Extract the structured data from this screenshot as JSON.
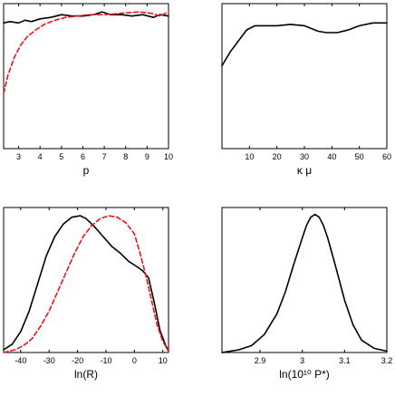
{
  "chart_data": [
    {
      "type": "line",
      "xlabel": "p",
      "xlim": [
        2.3,
        10
      ],
      "ylim": [
        0,
        1.05
      ],
      "xticks": [
        "3",
        "4",
        "5",
        "6",
        "7",
        "8",
        "9",
        "10"
      ],
      "series": [
        {
          "style": "solid",
          "color": "#000000",
          "x": [
            2.3,
            2.6,
            3.0,
            3.3,
            3.6,
            4.0,
            4.5,
            5.0,
            5.5,
            6.0,
            6.5,
            6.9,
            7.3,
            7.8,
            8.3,
            8.8,
            9.3,
            9.6,
            10.0
          ],
          "y": [
            0.91,
            0.92,
            0.91,
            0.93,
            0.92,
            0.94,
            0.95,
            0.97,
            0.96,
            0.96,
            0.97,
            0.99,
            0.97,
            0.97,
            0.96,
            0.97,
            0.95,
            0.97,
            0.96
          ]
        },
        {
          "style": "dashed",
          "color": "#e8141c",
          "x": [
            2.3,
            2.5,
            2.8,
            3.1,
            3.4,
            3.8,
            4.2,
            4.7,
            5.2,
            5.7,
            6.3,
            7.0,
            7.8,
            8.6,
            9.2,
            9.6,
            10.0
          ],
          "y": [
            0.4,
            0.53,
            0.66,
            0.75,
            0.81,
            0.86,
            0.9,
            0.93,
            0.95,
            0.96,
            0.97,
            0.97,
            0.98,
            0.99,
            0.98,
            0.96,
            0.99
          ]
        }
      ]
    },
    {
      "type": "line",
      "xlabel": "κ μ",
      "xlim": [
        0,
        60
      ],
      "ylim": [
        0,
        1.05
      ],
      "xticks": [
        "10",
        "20",
        "30",
        "40",
        "50",
        "60"
      ],
      "series": [
        {
          "style": "solid",
          "color": "#000000",
          "x": [
            0,
            3,
            6,
            9,
            12,
            15,
            20,
            25,
            30,
            35,
            38,
            42,
            46,
            50,
            55,
            60
          ],
          "y": [
            0.6,
            0.7,
            0.78,
            0.86,
            0.89,
            0.89,
            0.89,
            0.9,
            0.89,
            0.85,
            0.84,
            0.84,
            0.86,
            0.89,
            0.91,
            0.91
          ]
        }
      ]
    },
    {
      "type": "line",
      "xlabel": "ln(R)",
      "xlim": [
        -46,
        12
      ],
      "ylim": [
        0,
        1.05
      ],
      "xticks": [
        "-40",
        "-30",
        "-20",
        "-10",
        "0",
        "10"
      ],
      "series": [
        {
          "style": "solid",
          "color": "#000000",
          "x": [
            -46,
            -43,
            -40,
            -37,
            -34,
            -31,
            -28,
            -25,
            -22,
            -19,
            -17,
            -14,
            -11,
            -8,
            -5,
            -2,
            1,
            3,
            5,
            7,
            9,
            11,
            12
          ],
          "y": [
            0.02,
            0.06,
            0.15,
            0.3,
            0.5,
            0.7,
            0.84,
            0.93,
            0.98,
            0.99,
            0.97,
            0.91,
            0.84,
            0.77,
            0.72,
            0.66,
            0.62,
            0.59,
            0.54,
            0.36,
            0.16,
            0.05,
            0.01
          ]
        },
        {
          "style": "dashed",
          "color": "#e8141c",
          "x": [
            -46,
            -42,
            -39,
            -36,
            -33,
            -30,
            -27,
            -24,
            -21,
            -18,
            -15,
            -12,
            -9,
            -6,
            -3,
            0,
            2,
            4,
            6,
            8,
            10,
            12
          ],
          "y": [
            0.0,
            0.02,
            0.05,
            0.1,
            0.19,
            0.3,
            0.44,
            0.58,
            0.72,
            0.84,
            0.92,
            0.97,
            0.99,
            0.98,
            0.94,
            0.86,
            0.72,
            0.56,
            0.38,
            0.2,
            0.08,
            0.01
          ]
        }
      ]
    },
    {
      "type": "line",
      "xlabel": "ln(10¹⁰ P*)",
      "xlim": [
        2.81,
        3.2
      ],
      "ylim": [
        0,
        1.05
      ],
      "xticks": [
        "2.9",
        "3",
        "3.1",
        "3.2"
      ],
      "series": [
        {
          "style": "solid",
          "color": "#000000",
          "x": [
            2.81,
            2.85,
            2.88,
            2.91,
            2.94,
            2.96,
            2.98,
            3.0,
            3.01,
            3.02,
            3.03,
            3.04,
            3.05,
            3.06,
            3.08,
            3.1,
            3.12,
            3.14,
            3.17,
            3.2
          ],
          "y": [
            0.0,
            0.02,
            0.05,
            0.13,
            0.28,
            0.44,
            0.64,
            0.83,
            0.92,
            0.98,
            1.0,
            0.98,
            0.92,
            0.83,
            0.61,
            0.38,
            0.2,
            0.09,
            0.03,
            0.01
          ]
        }
      ]
    }
  ]
}
